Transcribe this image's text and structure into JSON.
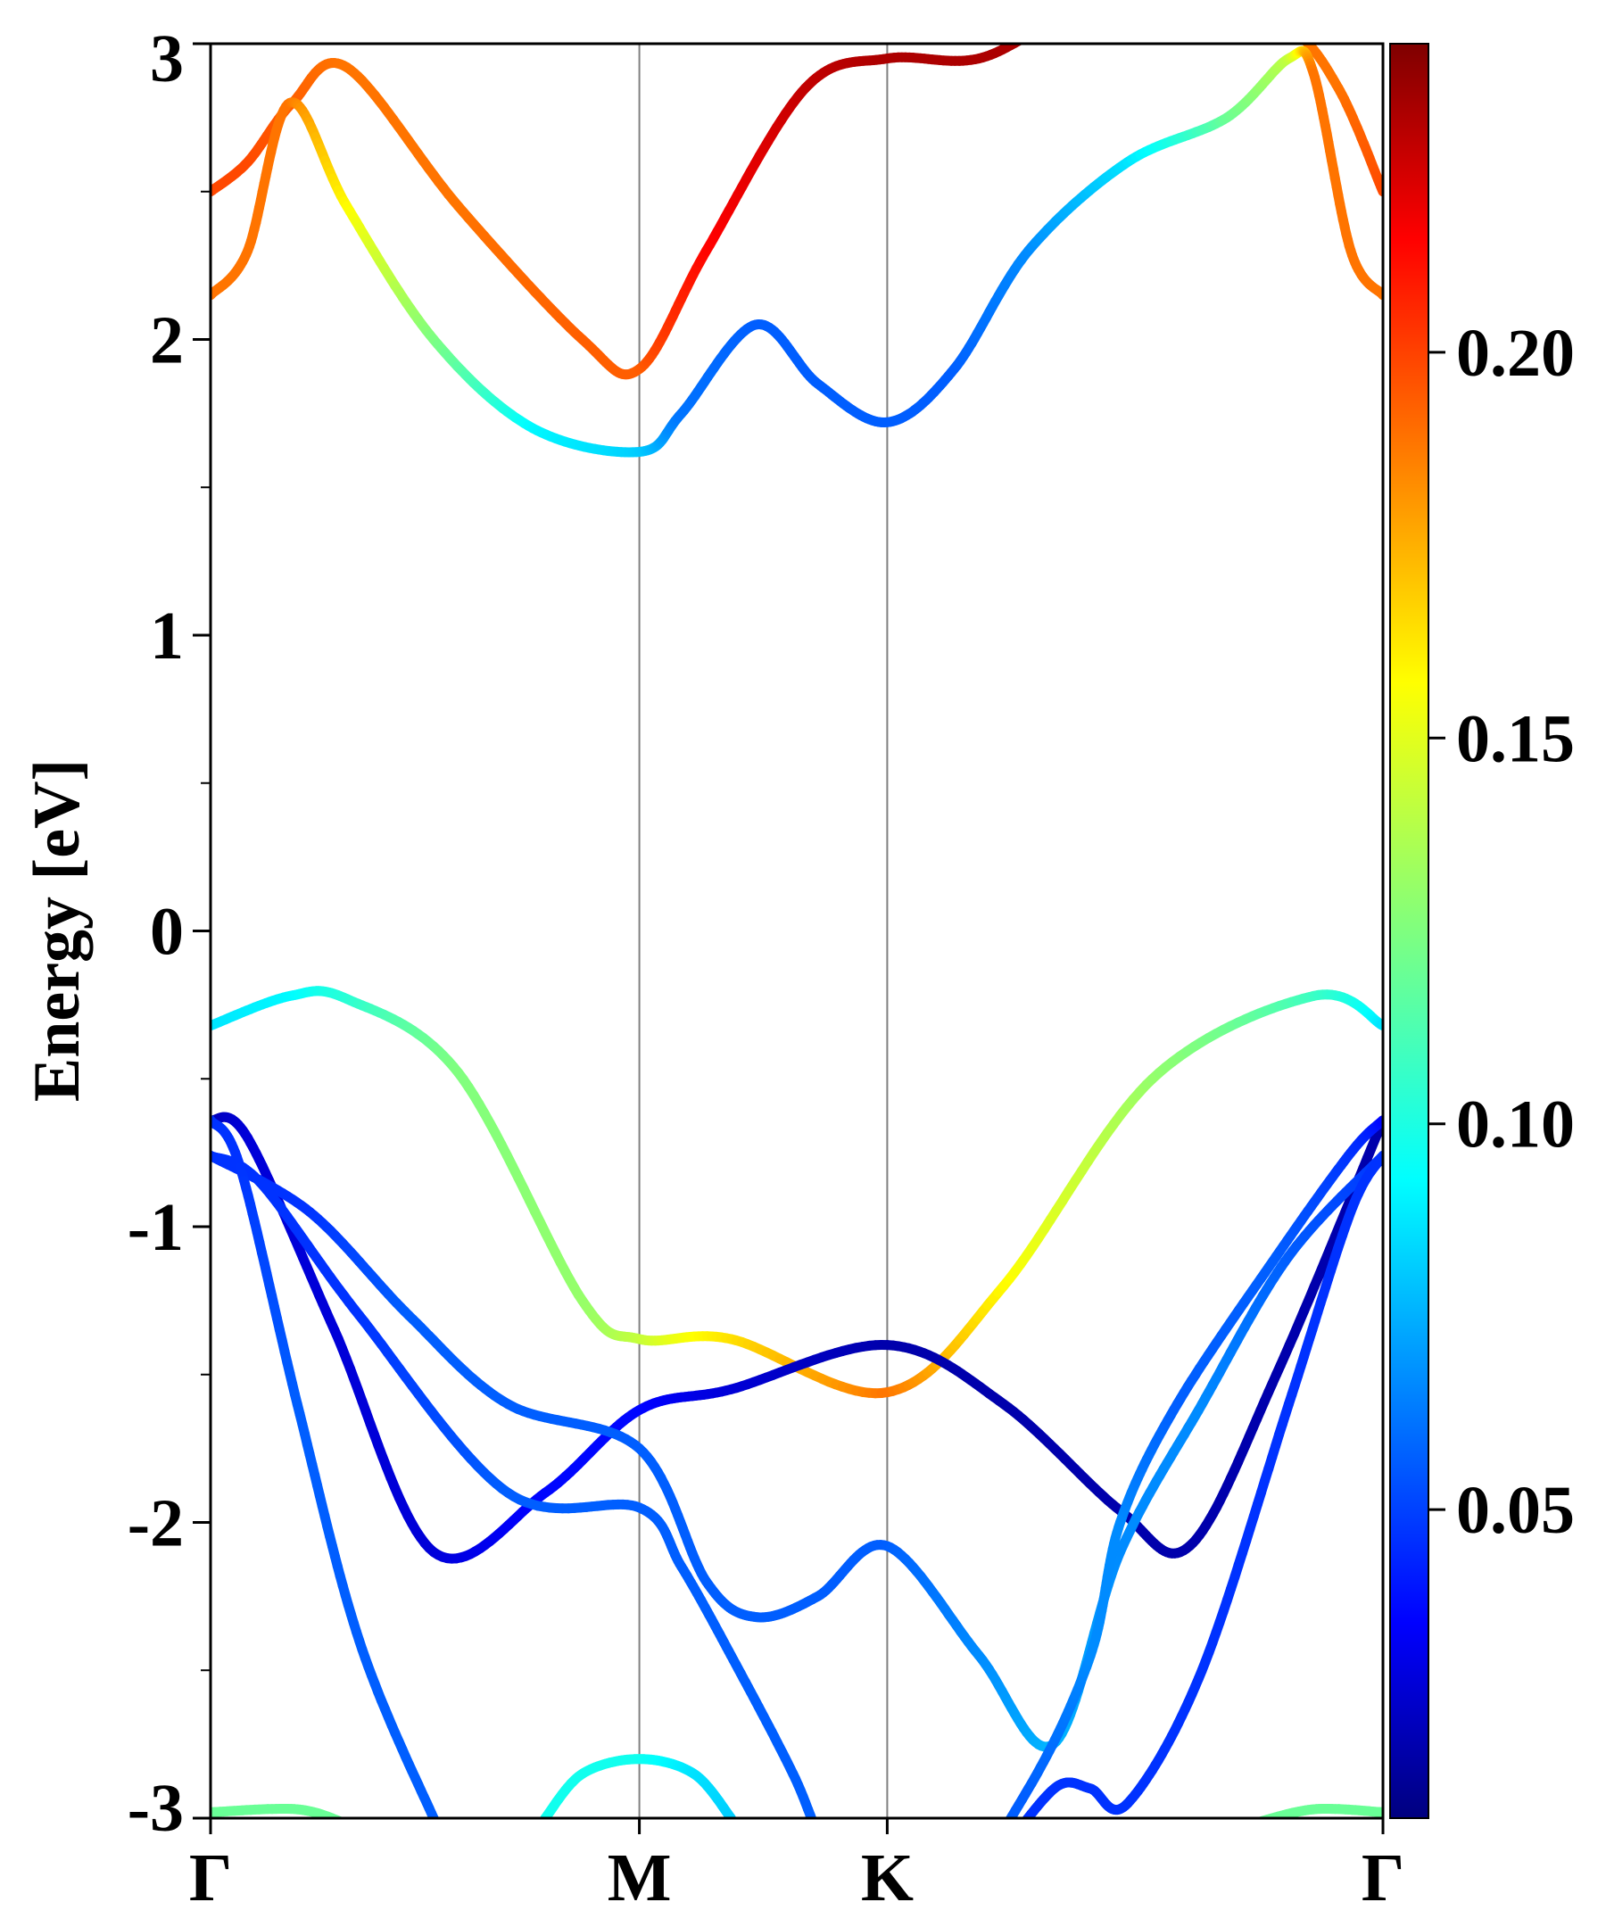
{
  "chart_data": {
    "type": "line",
    "title": "",
    "ylabel": "Energy [eV]",
    "xlabel": "",
    "ylim": [
      -3,
      3
    ],
    "xlim": [
      0,
      4.73
    ],
    "y_ticks": [
      {
        "value": -3,
        "label": "-3"
      },
      {
        "value": -2,
        "label": "-2"
      },
      {
        "value": -1,
        "label": "-1"
      },
      {
        "value": 0,
        "label": "0"
      },
      {
        "value": 1,
        "label": "1"
      },
      {
        "value": 2,
        "label": "2"
      },
      {
        "value": 3,
        "label": "3"
      }
    ],
    "y_minor_ticks": [
      -2.5,
      -1.5,
      -0.5,
      0.5,
      1.5,
      2.5
    ],
    "k_points": [
      {
        "label": "Γ",
        "x": 0
      },
      {
        "label": "M",
        "x": 1.73
      },
      {
        "label": "K",
        "x": 2.73
      },
      {
        "label": "Γ",
        "x": 4.73
      }
    ],
    "colorbar": {
      "colormap": "jet",
      "range": [
        0.01,
        0.24
      ],
      "ticks": [
        {
          "value": 0.05,
          "label": "0.05"
        },
        {
          "value": 0.1,
          "label": "0.10"
        },
        {
          "value": 0.15,
          "label": "0.15"
        },
        {
          "value": 0.2,
          "label": "0.20"
        }
      ]
    },
    "bands": [
      {
        "x": [
          0,
          0.32,
          0.55,
          1.0,
          1.5,
          1.73,
          2.1,
          2.73,
          3.2,
          3.8,
          4.45,
          4.73
        ],
        "y": [
          -0.32,
          -0.22,
          -0.23,
          -0.48,
          -1.25,
          -1.38,
          -1.38,
          -1.56,
          -1.2,
          -0.5,
          -0.22,
          -0.32
        ],
        "c": [
          0.09,
          0.095,
          0.105,
          0.125,
          0.13,
          0.14,
          0.16,
          0.185,
          0.155,
          0.13,
          0.11,
          0.09
        ]
      },
      {
        "x": [
          0,
          0.15,
          0.5,
          0.9,
          1.35,
          1.73,
          2.1,
          2.73,
          3.2,
          3.67,
          3.95,
          4.3,
          4.73
        ],
        "y": [
          -0.64,
          -0.7,
          -1.35,
          -2.1,
          -1.9,
          -1.62,
          -1.55,
          -1.4,
          -1.6,
          -1.96,
          -2.08,
          -1.5,
          -0.64
        ],
        "c": [
          0.02,
          0.03,
          0.03,
          0.03,
          0.04,
          0.04,
          0.03,
          0.02,
          0.02,
          0.02,
          0.02,
          0.02,
          0.02
        ]
      },
      {
        "x": [
          0,
          0.4,
          0.8,
          1.2,
          1.73,
          2.0,
          2.2,
          2.45,
          2.73,
          3.1,
          3.4,
          3.67,
          4.0,
          4.35,
          4.73
        ],
        "y": [
          -0.76,
          -0.95,
          -1.3,
          -1.6,
          -1.75,
          -2.2,
          -2.32,
          -2.25,
          -2.08,
          -2.45,
          -2.75,
          -2.1,
          -1.6,
          -1.1,
          -0.76
        ],
        "c": [
          0.05,
          0.05,
          0.06,
          0.06,
          0.06,
          0.06,
          0.06,
          0.06,
          0.06,
          0.07,
          0.08,
          0.07,
          0.07,
          0.06,
          0.05
        ]
      },
      {
        "x": [
          0,
          0.2,
          0.6,
          1.2,
          1.73,
          1.9,
          2.1,
          2.35,
          2.6,
          2.95,
          3.3,
          3.55,
          3.67,
          3.9,
          4.3,
          4.6,
          4.73
        ],
        "y": [
          -0.76,
          -0.85,
          -1.3,
          -1.9,
          -1.95,
          -2.15,
          -2.45,
          -2.85,
          -3.3,
          -3.3,
          -2.9,
          -2.45,
          -2.0,
          -1.6,
          -1.1,
          -0.75,
          -0.64
        ],
        "c": [
          0.05,
          0.05,
          0.05,
          0.06,
          0.06,
          0.06,
          0.06,
          0.06,
          0.06,
          0.06,
          0.06,
          0.07,
          0.07,
          0.06,
          0.06,
          0.05,
          0.04
        ]
      },
      {
        "x": [
          0,
          0.12,
          0.35,
          0.6,
          0.9,
          1.0
        ],
        "y": [
          -0.64,
          -0.8,
          -1.6,
          -2.4,
          -3.0,
          -3.15
        ],
        "c": [
          0.05,
          0.05,
          0.06,
          0.06,
          0.06,
          0.06
        ]
      },
      {
        "x": [
          3.25,
          3.42,
          3.55,
          3.7,
          4.0,
          4.35,
          4.6,
          4.73
        ],
        "y": [
          -3.05,
          -2.89,
          -2.9,
          -2.95,
          -2.5,
          -1.6,
          -0.95,
          -0.76
        ],
        "c": [
          0.05,
          0.05,
          0.05,
          0.05,
          0.05,
          0.05,
          0.05,
          0.05
        ]
      },
      {
        "x": [
          1.35,
          1.5,
          1.73,
          1.95,
          2.1
        ],
        "y": [
          -3.0,
          -2.85,
          -2.8,
          -2.85,
          -3.0
        ],
        "c": [
          0.1,
          0.1,
          0.1,
          0.09,
          0.085
        ]
      },
      {
        "x": [
          0,
          0.35,
          0.55
        ],
        "y": [
          -2.98,
          -2.97,
          -3.02
        ],
        "c": [
          0.12,
          0.12,
          0.12
        ]
      },
      {
        "x": [
          4.2,
          4.45,
          4.73
        ],
        "y": [
          -3.02,
          -2.97,
          -2.98
        ],
        "c": [
          0.12,
          0.12,
          0.12
        ]
      },
      {
        "x": [
          0,
          0.15,
          0.33,
          0.55,
          1.0,
          1.5,
          1.73,
          2.0,
          2.4,
          2.73,
          3.1,
          3.5,
          4.0,
          4.35,
          4.55,
          4.73
        ],
        "y": [
          2.5,
          2.6,
          2.8,
          2.92,
          2.45,
          2.0,
          1.9,
          2.3,
          2.85,
          2.95,
          2.95,
          3.1,
          3.1,
          3.05,
          2.85,
          2.5
        ],
        "c": [
          0.195,
          0.195,
          0.19,
          0.185,
          0.185,
          0.19,
          0.19,
          0.21,
          0.225,
          0.23,
          0.23,
          0.23,
          0.23,
          0.185,
          0.185,
          0.195
        ]
      },
      {
        "x": [
          0,
          0.15,
          0.32,
          0.55,
          0.9,
          1.3,
          1.73,
          1.9,
          2.2,
          2.45,
          2.73,
          3.0,
          3.3,
          3.7,
          4.1,
          4.35,
          4.45,
          4.6,
          4.73
        ],
        "y": [
          2.15,
          2.3,
          2.8,
          2.45,
          2.0,
          1.7,
          1.62,
          1.75,
          2.05,
          1.85,
          1.72,
          1.9,
          2.3,
          2.6,
          2.75,
          2.95,
          2.9,
          2.3,
          2.15
        ],
        "c": [
          0.185,
          0.185,
          0.185,
          0.155,
          0.125,
          0.095,
          0.085,
          0.065,
          0.06,
          0.06,
          0.06,
          0.06,
          0.07,
          0.09,
          0.12,
          0.14,
          0.185,
          0.185,
          0.185
        ]
      }
    ]
  }
}
